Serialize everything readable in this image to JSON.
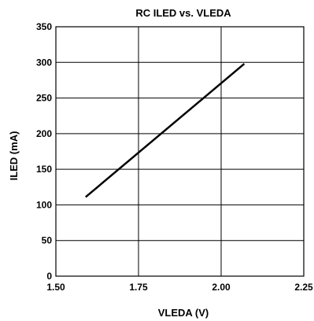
{
  "chart_data": {
    "type": "line",
    "title": "RC ILED vs. VLEDA",
    "xlabel": "VLEDA (V)",
    "ylabel": "ILED (mA)",
    "xlim": [
      1.5,
      2.25
    ],
    "ylim": [
      0,
      350
    ],
    "x_ticks": [
      1.5,
      1.75,
      2.0,
      2.25
    ],
    "x_tick_labels": [
      "1.50",
      "1.75",
      "2.00",
      "2.25"
    ],
    "y_ticks": [
      0,
      50,
      100,
      150,
      200,
      250,
      300,
      350
    ],
    "y_tick_labels": [
      "0",
      "50",
      "100",
      "150",
      "200",
      "250",
      "300",
      "350"
    ],
    "grid": true,
    "series": [
      {
        "x": [
          1.59,
          2.07
        ],
        "y": [
          111,
          298
        ],
        "color": "#000000"
      }
    ]
  }
}
